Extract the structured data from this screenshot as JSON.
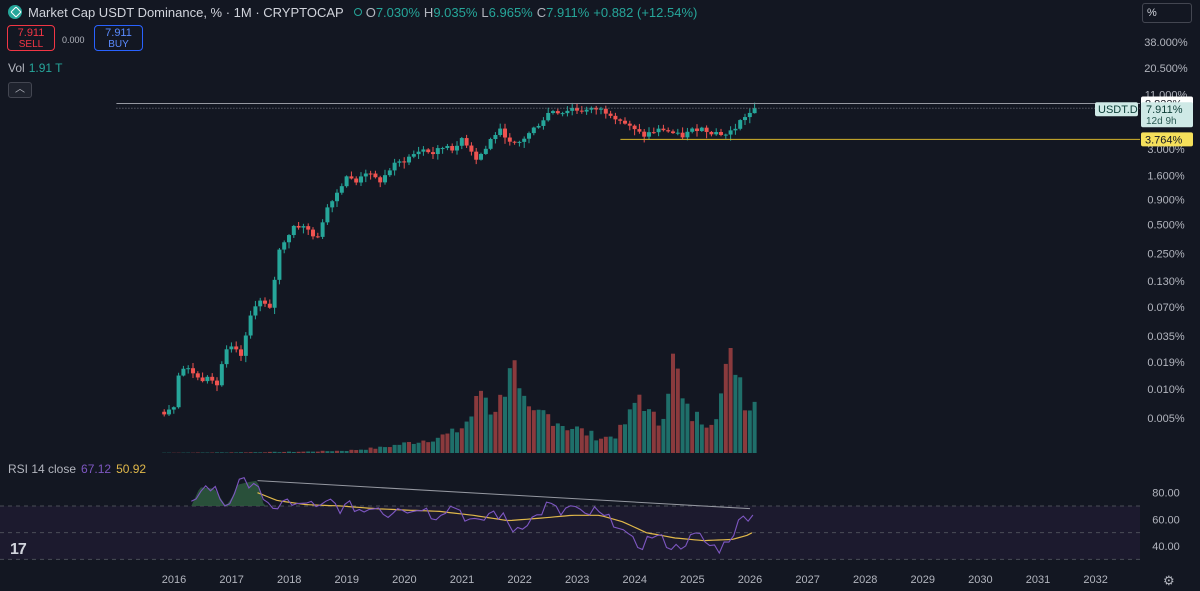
{
  "header": {
    "title": "Market Cap USDT Dominance, % · 1M · CRYPTOCAP",
    "ohlc": [
      {
        "k": "O",
        "v": "7.030%"
      },
      {
        "k": "H",
        "v": "9.035%"
      },
      {
        "k": "L",
        "v": "6.965%"
      },
      {
        "k": "C",
        "v": "7.911%"
      }
    ],
    "change": "+0.882 (+12.54%)"
  },
  "trade": {
    "sell_price": "7.911",
    "sell_label": "SELL",
    "spread": "0.000",
    "buy_price": "7.911",
    "buy_label": "BUY"
  },
  "volume_legend": {
    "label": "Vol",
    "value": "1.91 T"
  },
  "rsi_legend": {
    "label": "RSI 14 close",
    "rsi": "67.12",
    "ma": "50.92"
  },
  "scale_mode": "%",
  "colors": {
    "background": "#131722",
    "up": "#26a69a",
    "down": "#ef5350",
    "vol_up": "#1f6f6a",
    "vol_down": "#8a3a3d",
    "rsi": "#7e57c2",
    "rsi_ma": "#e0b84a",
    "hline": "#d4b42c",
    "trendline": "#9598a1"
  },
  "chart_data": [
    {
      "type": "candlestick",
      "symbol": "USDT.D",
      "interval": "1M",
      "y_scale": "log",
      "y_ticks": [
        "38.000%",
        "20.500%",
        "11.000%",
        "3.000%",
        "1.600%",
        "0.900%",
        "0.500%",
        "0.250%",
        "0.130%",
        "0.070%",
        "0.035%",
        "0.019%",
        "0.010%",
        "0.005%"
      ],
      "x_ticks": [
        "2016",
        "2017",
        "2018",
        "2019",
        "2020",
        "2021",
        "2022",
        "2023",
        "2024",
        "2025",
        "2026",
        "2027",
        "2028",
        "2029",
        "2030",
        "2031",
        "2032"
      ],
      "x_range": [
        2015.0,
        2032.9
      ],
      "y_range_pct": [
        0.0035,
        52
      ],
      "price_labels": {
        "symbol": "USDT.D",
        "last": "7.911%",
        "countdown": "12d 9h",
        "high_line": "8.833%",
        "support_line": "3.764%"
      },
      "horizontal_lines": [
        {
          "value": 8.833,
          "label": "8.833%",
          "from": 2015.0
        },
        {
          "value": 7.911,
          "style": "dotted",
          "from": 2015.0
        },
        {
          "value": 3.764,
          "label": "3.764%",
          "from": 2023.75
        }
      ],
      "anchors": [
        [
          2015.83,
          0.0058
        ],
        [
          2016.0,
          0.0068
        ],
        [
          2016.1,
          0.0165
        ],
        [
          2016.3,
          0.0155
        ],
        [
          2016.45,
          0.012
        ],
        [
          2016.6,
          0.0145
        ],
        [
          2016.75,
          0.011
        ],
        [
          2016.9,
          0.024
        ],
        [
          2017.0,
          0.026
        ],
        [
          2017.2,
          0.021
        ],
        [
          2017.4,
          0.075
        ],
        [
          2017.5,
          0.08
        ],
        [
          2017.7,
          0.062
        ],
        [
          2017.85,
          0.3
        ],
        [
          2018.0,
          0.4
        ],
        [
          2018.1,
          0.5
        ],
        [
          2018.3,
          0.45
        ],
        [
          2018.5,
          0.35
        ],
        [
          2018.7,
          0.85
        ],
        [
          2018.85,
          1.1
        ],
        [
          2019.0,
          1.6
        ],
        [
          2019.15,
          1.3
        ],
        [
          2019.3,
          1.8
        ],
        [
          2019.45,
          1.5
        ],
        [
          2019.6,
          1.4
        ],
        [
          2019.8,
          2.0
        ],
        [
          2020.0,
          2.3
        ],
        [
          2020.15,
          2.6
        ],
        [
          2020.3,
          3.0
        ],
        [
          2020.5,
          2.7
        ],
        [
          2020.75,
          3.3
        ],
        [
          2020.9,
          2.9
        ],
        [
          2021.0,
          3.9
        ],
        [
          2021.1,
          3.3
        ],
        [
          2021.25,
          2.4
        ],
        [
          2021.4,
          2.9
        ],
        [
          2021.55,
          4.2
        ],
        [
          2021.7,
          4.7
        ],
        [
          2021.85,
          3.2
        ],
        [
          2022.0,
          3.5
        ],
        [
          2022.2,
          4.5
        ],
        [
          2022.4,
          6.0
        ],
        [
          2022.55,
          7.6
        ],
        [
          2022.75,
          7.2
        ],
        [
          2022.9,
          8.0
        ],
        [
          2023.0,
          7.6
        ],
        [
          2023.2,
          7.5
        ],
        [
          2023.35,
          7.8
        ],
        [
          2023.55,
          7.2
        ],
        [
          2023.75,
          6.0
        ],
        [
          2023.95,
          4.8
        ],
        [
          2024.15,
          4.1
        ],
        [
          2024.3,
          4.5
        ],
        [
          2024.5,
          4.8
        ],
        [
          2024.65,
          4.4
        ],
        [
          2024.8,
          4.0
        ],
        [
          2024.95,
          4.5
        ],
        [
          2025.1,
          5.0
        ],
        [
          2025.3,
          4.6
        ],
        [
          2025.45,
          4.4
        ],
        [
          2025.6,
          4.2
        ],
        [
          2025.75,
          5.0
        ],
        [
          2025.9,
          6.5
        ],
        [
          2026.0,
          7.0
        ],
        [
          2026.08,
          7.911
        ]
      ]
    },
    {
      "type": "bar",
      "name": "Volume",
      "last_value": "1.91 T",
      "anchors": [
        [
          2015.83,
          0.01
        ],
        [
          2016.5,
          0.015
        ],
        [
          2017.5,
          0.03
        ],
        [
          2018.3,
          0.05
        ],
        [
          2019.0,
          0.09
        ],
        [
          2019.6,
          0.2
        ],
        [
          2020.0,
          0.35
        ],
        [
          2020.4,
          0.5
        ],
        [
          2020.8,
          0.7
        ],
        [
          2021.0,
          0.95
        ],
        [
          2021.2,
          1.5
        ],
        [
          2021.35,
          2.5
        ],
        [
          2021.5,
          1.6
        ],
        [
          2021.7,
          2.0
        ],
        [
          2021.85,
          3.8
        ],
        [
          2022.0,
          2.0
        ],
        [
          2022.2,
          1.3
        ],
        [
          2022.4,
          1.5
        ],
        [
          2022.6,
          1.3
        ],
        [
          2022.8,
          1.0
        ],
        [
          2023.0,
          0.9
        ],
        [
          2023.2,
          0.7
        ],
        [
          2023.45,
          0.55
        ],
        [
          2023.7,
          0.7
        ],
        [
          2023.9,
          1.3
        ],
        [
          2024.1,
          2.3
        ],
        [
          2024.25,
          1.4
        ],
        [
          2024.45,
          1.1
        ],
        [
          2024.6,
          2.9
        ],
        [
          2024.7,
          3.6
        ],
        [
          2024.8,
          2.0
        ],
        [
          2024.95,
          1.4
        ],
        [
          2025.1,
          1.3
        ],
        [
          2025.3,
          1.2
        ],
        [
          2025.45,
          1.8
        ],
        [
          2025.6,
          3.0
        ],
        [
          2025.7,
          3.9
        ],
        [
          2025.8,
          3.1
        ],
        [
          2025.95,
          1.7
        ],
        [
          2026.08,
          1.91
        ]
      ]
    },
    {
      "type": "line",
      "name": "RSI 14 close",
      "y_ticks": [
        "80.00",
        "60.00",
        "40.00"
      ],
      "y_range": [
        25,
        100
      ],
      "bands": [
        30,
        50,
        70
      ],
      "last_rsi": 67.12,
      "last_ma": 50.92,
      "rsi_anchors": [
        [
          2016.3,
          70
        ],
        [
          2016.45,
          84
        ],
        [
          2016.7,
          83
        ],
        [
          2016.9,
          70
        ],
        [
          2017.0,
          76
        ],
        [
          2017.1,
          86
        ],
        [
          2017.3,
          88
        ],
        [
          2017.45,
          89
        ],
        [
          2017.55,
          72
        ],
        [
          2017.7,
          65
        ],
        [
          2017.9,
          76
        ],
        [
          2018.1,
          68
        ],
        [
          2018.3,
          74
        ],
        [
          2018.5,
          66
        ],
        [
          2018.7,
          74
        ],
        [
          2018.9,
          68
        ],
        [
          2019.1,
          70
        ],
        [
          2019.3,
          66
        ],
        [
          2019.5,
          72
        ],
        [
          2019.7,
          63
        ],
        [
          2019.9,
          72
        ],
        [
          2020.1,
          65
        ],
        [
          2020.3,
          70
        ],
        [
          2020.5,
          62
        ],
        [
          2020.7,
          68
        ],
        [
          2020.9,
          70
        ],
        [
          2021.1,
          60
        ],
        [
          2021.3,
          56
        ],
        [
          2021.5,
          66
        ],
        [
          2021.7,
          62
        ],
        [
          2021.9,
          52
        ],
        [
          2022.1,
          58
        ],
        [
          2022.3,
          62
        ],
        [
          2022.5,
          72
        ],
        [
          2022.7,
          64
        ],
        [
          2022.9,
          70
        ],
        [
          2023.1,
          62
        ],
        [
          2023.3,
          66
        ],
        [
          2023.5,
          60
        ],
        [
          2023.7,
          58
        ],
        [
          2023.9,
          44
        ],
        [
          2024.1,
          40
        ],
        [
          2024.3,
          48
        ],
        [
          2024.5,
          44
        ],
        [
          2024.7,
          38
        ],
        [
          2024.9,
          44
        ],
        [
          2025.1,
          48
        ],
        [
          2025.3,
          40
        ],
        [
          2025.5,
          38
        ],
        [
          2025.7,
          50
        ],
        [
          2025.85,
          60
        ],
        [
          2026.0,
          64
        ],
        [
          2026.08,
          67.12
        ]
      ],
      "ma_anchors": [
        [
          2017.45,
          80
        ],
        [
          2017.8,
          74
        ],
        [
          2018.3,
          71
        ],
        [
          2018.9,
          70
        ],
        [
          2019.5,
          68
        ],
        [
          2020.0,
          67
        ],
        [
          2020.6,
          66
        ],
        [
          2021.2,
          63
        ],
        [
          2021.8,
          59
        ],
        [
          2022.4,
          61
        ],
        [
          2022.9,
          63
        ],
        [
          2023.4,
          63
        ],
        [
          2023.8,
          58
        ],
        [
          2024.2,
          50
        ],
        [
          2024.7,
          46
        ],
        [
          2025.2,
          44
        ],
        [
          2025.7,
          45
        ],
        [
          2025.95,
          48
        ],
        [
          2026.08,
          50.92
        ]
      ],
      "trendline": [
        [
          2017.45,
          89
        ],
        [
          2026.0,
          68
        ]
      ]
    }
  ]
}
